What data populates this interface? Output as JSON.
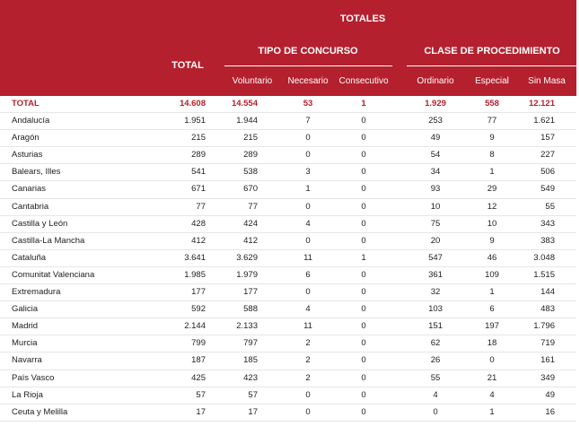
{
  "header": {
    "totales": "TOTALES",
    "total": "TOTAL",
    "tipo_concurso": "TIPO DE CONCURSO",
    "clase_procedimiento": "CLASE DE PROCEDIMIENTO",
    "voluntario": "Voluntario",
    "necesario": "Necesario",
    "consecutivo": "Consecutivo",
    "ordinario": "Ordinario",
    "especial": "Especial",
    "sin_masa": "Sin Masa"
  },
  "rows": [
    {
      "name": "TOTAL",
      "total": "14.608",
      "voluntario": "14.554",
      "necesario": "53",
      "consecutivo": "1",
      "ordinario": "1.929",
      "especial": "558",
      "sin_masa": "12.121"
    },
    {
      "name": "Andalucía",
      "total": "1.951",
      "voluntario": "1.944",
      "necesario": "7",
      "consecutivo": "0",
      "ordinario": "253",
      "especial": "77",
      "sin_masa": "1.621"
    },
    {
      "name": "Aragón",
      "total": "215",
      "voluntario": "215",
      "necesario": "0",
      "consecutivo": "0",
      "ordinario": "49",
      "especial": "9",
      "sin_masa": "157"
    },
    {
      "name": "Asturias",
      "total": "289",
      "voluntario": "289",
      "necesario": "0",
      "consecutivo": "0",
      "ordinario": "54",
      "especial": "8",
      "sin_masa": "227"
    },
    {
      "name": "Balears, Illes",
      "total": "541",
      "voluntario": "538",
      "necesario": "3",
      "consecutivo": "0",
      "ordinario": "34",
      "especial": "1",
      "sin_masa": "506"
    },
    {
      "name": "Canarias",
      "total": "671",
      "voluntario": "670",
      "necesario": "1",
      "consecutivo": "0",
      "ordinario": "93",
      "especial": "29",
      "sin_masa": "549"
    },
    {
      "name": "Cantabria",
      "total": "77",
      "voluntario": "77",
      "necesario": "0",
      "consecutivo": "0",
      "ordinario": "10",
      "especial": "12",
      "sin_masa": "55"
    },
    {
      "name": "Castilla y León",
      "total": "428",
      "voluntario": "424",
      "necesario": "4",
      "consecutivo": "0",
      "ordinario": "75",
      "especial": "10",
      "sin_masa": "343"
    },
    {
      "name": "Castilla-La Mancha",
      "total": "412",
      "voluntario": "412",
      "necesario": "0",
      "consecutivo": "0",
      "ordinario": "20",
      "especial": "9",
      "sin_masa": "383"
    },
    {
      "name": "Cataluña",
      "total": "3.641",
      "voluntario": "3.629",
      "necesario": "11",
      "consecutivo": "1",
      "ordinario": "547",
      "especial": "46",
      "sin_masa": "3.048"
    },
    {
      "name": "Comunitat Valenciana",
      "total": "1.985",
      "voluntario": "1.979",
      "necesario": "6",
      "consecutivo": "0",
      "ordinario": "361",
      "especial": "109",
      "sin_masa": "1.515"
    },
    {
      "name": "Extremadura",
      "total": "177",
      "voluntario": "177",
      "necesario": "0",
      "consecutivo": "0",
      "ordinario": "32",
      "especial": "1",
      "sin_masa": "144"
    },
    {
      "name": "Galicia",
      "total": "592",
      "voluntario": "588",
      "necesario": "4",
      "consecutivo": "0",
      "ordinario": "103",
      "especial": "6",
      "sin_masa": "483"
    },
    {
      "name": "Madrid",
      "total": "2.144",
      "voluntario": "2.133",
      "necesario": "11",
      "consecutivo": "0",
      "ordinario": "151",
      "especial": "197",
      "sin_masa": "1.796"
    },
    {
      "name": "Murcia",
      "total": "799",
      "voluntario": "797",
      "necesario": "2",
      "consecutivo": "0",
      "ordinario": "62",
      "especial": "18",
      "sin_masa": "719"
    },
    {
      "name": "Navarra",
      "total": "187",
      "voluntario": "185",
      "necesario": "2",
      "consecutivo": "0",
      "ordinario": "26",
      "especial": "0",
      "sin_masa": "161"
    },
    {
      "name": "País Vasco",
      "total": "425",
      "voluntario": "423",
      "necesario": "2",
      "consecutivo": "0",
      "ordinario": "55",
      "especial": "21",
      "sin_masa": "349"
    },
    {
      "name": "La Rioja",
      "total": "57",
      "voluntario": "57",
      "necesario": "0",
      "consecutivo": "0",
      "ordinario": "4",
      "especial": "4",
      "sin_masa": "49"
    },
    {
      "name": "Ceuta y Melilla",
      "total": "17",
      "voluntario": "17",
      "necesario": "0",
      "consecutivo": "0",
      "ordinario": "0",
      "especial": "1",
      "sin_masa": "16"
    }
  ]
}
